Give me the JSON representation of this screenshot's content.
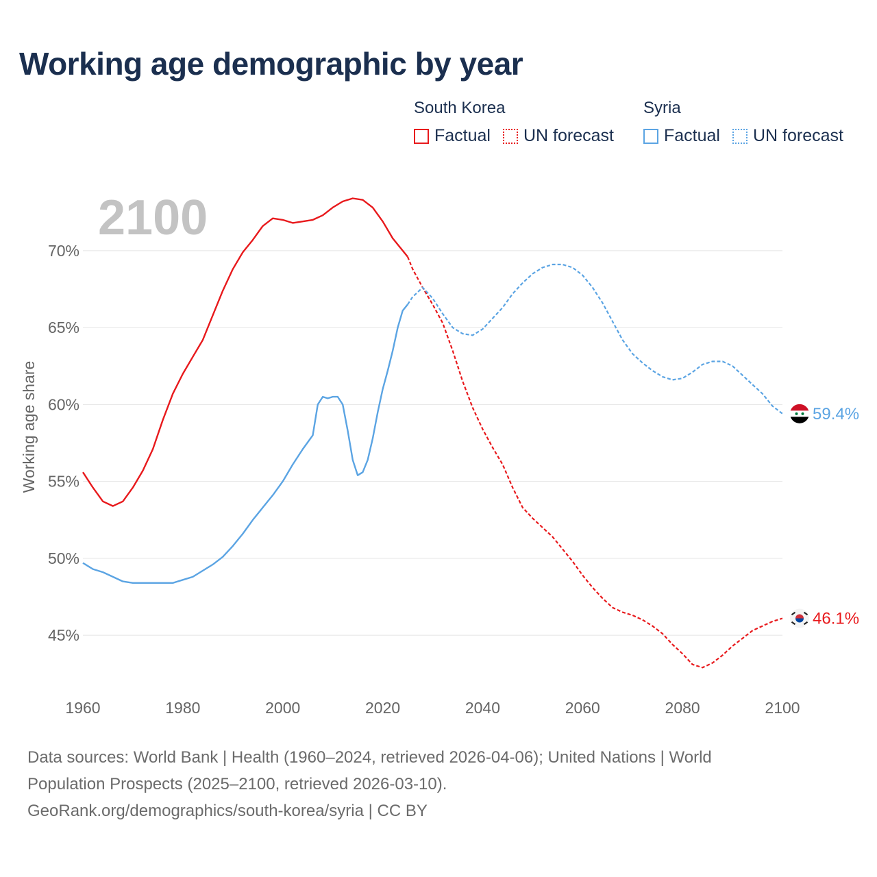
{
  "title": "Working age demographic by year",
  "year_label": "2100",
  "legend": {
    "groups": [
      {
        "name": "South Korea",
        "color": "#e8191c",
        "factual_label": "Factual",
        "forecast_label": "UN forecast"
      },
      {
        "name": "Syria",
        "color": "#5ba4e3",
        "factual_label": "Factual",
        "forecast_label": "UN forecast"
      }
    ]
  },
  "sources": {
    "line1": "Data sources: World Bank | Health (1960–2024, retrieved 2026-04-06); United Nations | World",
    "line2": "Population Prospects (2025–2100, retrieved 2026-03-10).",
    "line3": "GeoRank.org/demographics/south-korea/syria | CC BY"
  },
  "chart_data": {
    "type": "line",
    "title": "Working age demographic by year",
    "xlabel": "",
    "ylabel": "Working age share",
    "xlim": [
      1960,
      2100
    ],
    "ylim": [
      41,
      74
    ],
    "x_ticks": [
      1960,
      1980,
      2000,
      2020,
      2040,
      2060,
      2080,
      2100
    ],
    "x_tick_labels": [
      "1960",
      "1980",
      "2000",
      "2020",
      "2040",
      "2060",
      "2080",
      "2100"
    ],
    "y_ticks": [
      45,
      50,
      55,
      60,
      65,
      70
    ],
    "y_tick_labels": [
      "45%",
      "50%",
      "55%",
      "60%",
      "65%",
      "70%"
    ],
    "grid": true,
    "factual_end_year": 2025,
    "series": [
      {
        "name": "South Korea",
        "color": "#e8191c",
        "end_label": "46.1%",
        "points": [
          [
            1960,
            55.6
          ],
          [
            1962,
            54.6
          ],
          [
            1964,
            53.7
          ],
          [
            1966,
            53.4
          ],
          [
            1968,
            53.7
          ],
          [
            1970,
            54.6
          ],
          [
            1972,
            55.7
          ],
          [
            1974,
            57.1
          ],
          [
            1976,
            59.0
          ],
          [
            1978,
            60.7
          ],
          [
            1980,
            62.0
          ],
          [
            1982,
            63.1
          ],
          [
            1984,
            64.2
          ],
          [
            1986,
            65.8
          ],
          [
            1988,
            67.4
          ],
          [
            1990,
            68.8
          ],
          [
            1992,
            69.9
          ],
          [
            1994,
            70.7
          ],
          [
            1996,
            71.6
          ],
          [
            1998,
            72.1
          ],
          [
            2000,
            72.0
          ],
          [
            2002,
            71.8
          ],
          [
            2004,
            71.9
          ],
          [
            2006,
            72.0
          ],
          [
            2008,
            72.3
          ],
          [
            2010,
            72.8
          ],
          [
            2012,
            73.2
          ],
          [
            2014,
            73.4
          ],
          [
            2016,
            73.3
          ],
          [
            2018,
            72.8
          ],
          [
            2020,
            71.9
          ],
          [
            2022,
            70.8
          ],
          [
            2024,
            70.0
          ],
          [
            2025,
            69.6
          ],
          [
            2026,
            68.8
          ],
          [
            2028,
            67.6
          ],
          [
            2030,
            66.5
          ],
          [
            2032,
            65.3
          ],
          [
            2034,
            63.5
          ],
          [
            2036,
            61.5
          ],
          [
            2038,
            59.8
          ],
          [
            2040,
            58.4
          ],
          [
            2042,
            57.2
          ],
          [
            2044,
            56.1
          ],
          [
            2046,
            54.6
          ],
          [
            2048,
            53.3
          ],
          [
            2050,
            52.6
          ],
          [
            2052,
            52.0
          ],
          [
            2054,
            51.4
          ],
          [
            2056,
            50.6
          ],
          [
            2058,
            49.8
          ],
          [
            2060,
            48.9
          ],
          [
            2062,
            48.1
          ],
          [
            2064,
            47.4
          ],
          [
            2066,
            46.8
          ],
          [
            2068,
            46.5
          ],
          [
            2070,
            46.3
          ],
          [
            2072,
            46.0
          ],
          [
            2074,
            45.6
          ],
          [
            2076,
            45.1
          ],
          [
            2078,
            44.4
          ],
          [
            2080,
            43.8
          ],
          [
            2082,
            43.1
          ],
          [
            2084,
            42.9
          ],
          [
            2086,
            43.2
          ],
          [
            2088,
            43.7
          ],
          [
            2090,
            44.3
          ],
          [
            2092,
            44.8
          ],
          [
            2094,
            45.3
          ],
          [
            2096,
            45.6
          ],
          [
            2098,
            45.9
          ],
          [
            2100,
            46.1
          ]
        ]
      },
      {
        "name": "Syria",
        "color": "#5ba4e3",
        "end_label": "59.4%",
        "points": [
          [
            1960,
            49.7
          ],
          [
            1962,
            49.3
          ],
          [
            1964,
            49.1
          ],
          [
            1966,
            48.8
          ],
          [
            1968,
            48.5
          ],
          [
            1970,
            48.4
          ],
          [
            1972,
            48.4
          ],
          [
            1974,
            48.4
          ],
          [
            1976,
            48.4
          ],
          [
            1978,
            48.4
          ],
          [
            1980,
            48.6
          ],
          [
            1982,
            48.8
          ],
          [
            1984,
            49.2
          ],
          [
            1986,
            49.6
          ],
          [
            1988,
            50.1
          ],
          [
            1990,
            50.8
          ],
          [
            1992,
            51.6
          ],
          [
            1994,
            52.5
          ],
          [
            1996,
            53.3
          ],
          [
            1998,
            54.1
          ],
          [
            2000,
            55.0
          ],
          [
            2002,
            56.1
          ],
          [
            2004,
            57.1
          ],
          [
            2006,
            58.0
          ],
          [
            2007,
            60.0
          ],
          [
            2008,
            60.5
          ],
          [
            2009,
            60.4
          ],
          [
            2010,
            60.5
          ],
          [
            2011,
            60.5
          ],
          [
            2012,
            60.0
          ],
          [
            2013,
            58.3
          ],
          [
            2014,
            56.4
          ],
          [
            2015,
            55.4
          ],
          [
            2016,
            55.6
          ],
          [
            2017,
            56.4
          ],
          [
            2018,
            57.8
          ],
          [
            2019,
            59.5
          ],
          [
            2020,
            61.0
          ],
          [
            2021,
            62.2
          ],
          [
            2022,
            63.5
          ],
          [
            2023,
            65.0
          ],
          [
            2024,
            66.1
          ],
          [
            2025,
            66.5
          ],
          [
            2026,
            67.0
          ],
          [
            2028,
            67.6
          ],
          [
            2030,
            66.9
          ],
          [
            2032,
            65.9
          ],
          [
            2034,
            65.0
          ],
          [
            2036,
            64.6
          ],
          [
            2038,
            64.5
          ],
          [
            2040,
            64.9
          ],
          [
            2042,
            65.6
          ],
          [
            2044,
            66.3
          ],
          [
            2046,
            67.2
          ],
          [
            2048,
            67.9
          ],
          [
            2050,
            68.5
          ],
          [
            2052,
            68.9
          ],
          [
            2054,
            69.1
          ],
          [
            2056,
            69.1
          ],
          [
            2058,
            68.9
          ],
          [
            2060,
            68.4
          ],
          [
            2062,
            67.6
          ],
          [
            2064,
            66.6
          ],
          [
            2066,
            65.4
          ],
          [
            2068,
            64.2
          ],
          [
            2070,
            63.3
          ],
          [
            2072,
            62.7
          ],
          [
            2074,
            62.2
          ],
          [
            2076,
            61.8
          ],
          [
            2078,
            61.6
          ],
          [
            2080,
            61.7
          ],
          [
            2082,
            62.1
          ],
          [
            2084,
            62.6
          ],
          [
            2086,
            62.8
          ],
          [
            2088,
            62.8
          ],
          [
            2090,
            62.5
          ],
          [
            2092,
            61.9
          ],
          [
            2094,
            61.3
          ],
          [
            2096,
            60.7
          ],
          [
            2098,
            59.9
          ],
          [
            2100,
            59.4
          ]
        ]
      }
    ]
  }
}
